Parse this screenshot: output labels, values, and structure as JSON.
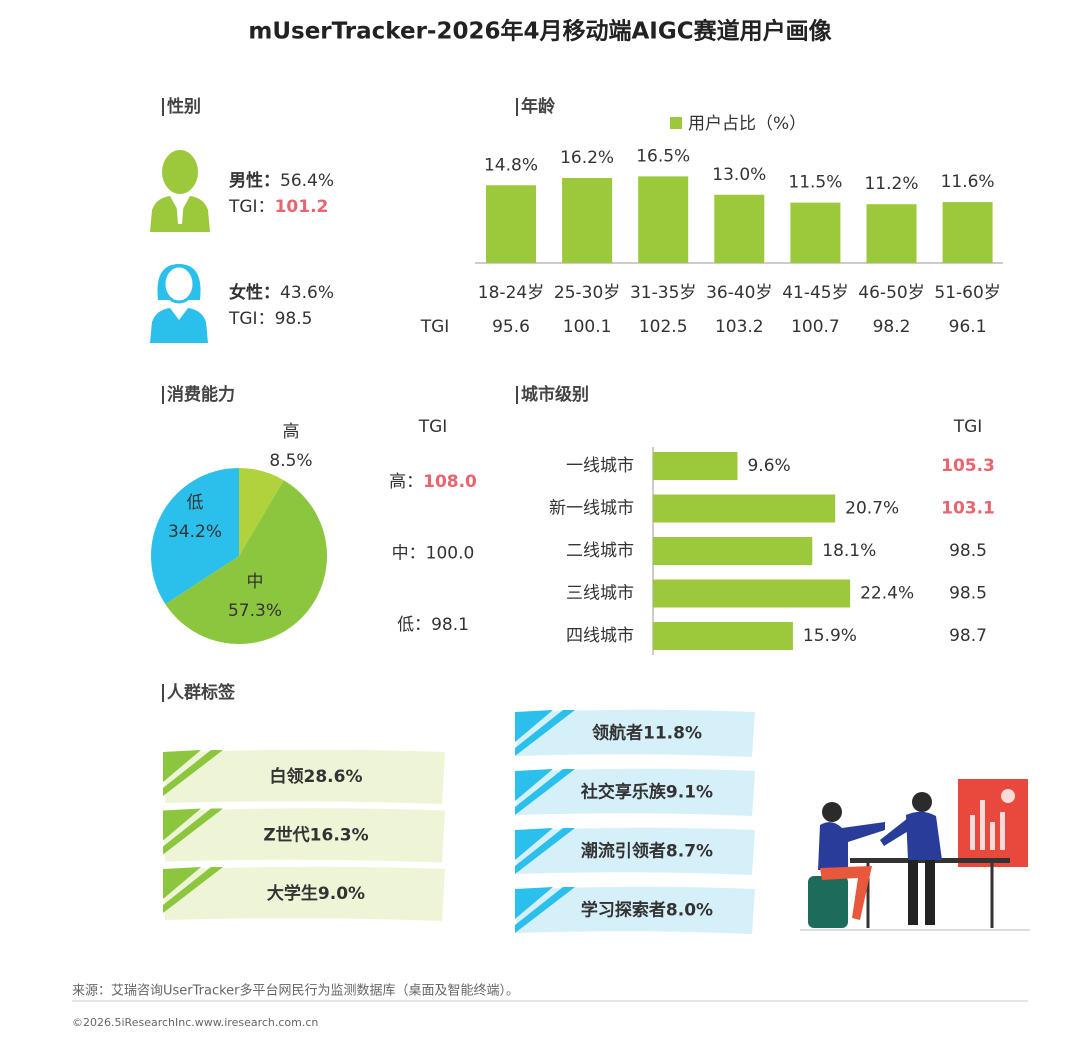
{
  "title": "mUserTracker-2026年4月移动端AIGC赛道用户画像",
  "gender": {
    "heading": "性别",
    "items": [
      {
        "label": "男性：",
        "share": "56.4%",
        "tgi_label": "TGI：",
        "tgi": "101.2",
        "highlight": true
      },
      {
        "label": "女性：",
        "share": "43.6%",
        "tgi_label": "TGI：",
        "tgi": "98.5",
        "highlight": false
      }
    ]
  },
  "chart_data": [
    {
      "type": "bar",
      "heading": "年龄",
      "legend": "用户占比（%）",
      "color": "#9cc93b",
      "categories": [
        "18-24岁",
        "25-30岁",
        "31-35岁",
        "36-40岁",
        "41-45岁",
        "46-50岁",
        "51-60岁"
      ],
      "values": [
        14.8,
        16.2,
        16.5,
        13.0,
        11.5,
        11.2,
        11.6
      ],
      "value_labels": [
        "14.8%",
        "16.2%",
        "16.5%",
        "13.0%",
        "11.5%",
        "11.2%",
        "11.6%"
      ],
      "tgi_label": "TGI",
      "tgi": [
        "95.6",
        "100.1",
        "102.5",
        "103.2",
        "100.7",
        "98.2",
        "96.1"
      ]
    },
    {
      "type": "pie",
      "heading": "消费能力",
      "categories": [
        "高",
        "中",
        "低"
      ],
      "values": [
        8.5,
        57.3,
        34.2
      ],
      "value_labels": [
        "8.5%",
        "57.3%",
        "34.2%"
      ],
      "colors": [
        "#b0d23c",
        "#8cc63f",
        "#2bc0ec"
      ],
      "tgi_title": "TGI",
      "tgi_labels": [
        "高：",
        "中：",
        "低："
      ],
      "tgi": [
        "108.0",
        "100.0",
        "98.1"
      ],
      "tgi_highlight": [
        true,
        false,
        false
      ]
    },
    {
      "type": "hbar",
      "heading": "城市级别",
      "color": "#9cc93b",
      "categories": [
        "一线城市",
        "新一线城市",
        "二线城市",
        "三线城市",
        "四线城市"
      ],
      "values": [
        9.6,
        20.7,
        18.1,
        22.4,
        15.9
      ],
      "value_labels": [
        "9.6%",
        "20.7%",
        "18.1%",
        "22.4%",
        "15.9%"
      ],
      "tgi_title": "TGI",
      "tgi": [
        "105.3",
        "103.1",
        "98.5",
        "98.5",
        "98.7"
      ],
      "tgi_highlight": [
        true,
        true,
        false,
        false,
        false
      ]
    }
  ],
  "tags": {
    "heading": "人群标签",
    "left": [
      "白领28.6%",
      "Z世代16.3%",
      "大学生9.0%"
    ],
    "right": [
      "领航者11.8%",
      "社交享乐族9.1%",
      "潮流引领者8.7%",
      "学习探索者8.0%"
    ]
  },
  "footer": {
    "source": "来源：艾瑞咨询UserTracker多平台网民行为监测数据库（桌面及智能终端）。",
    "copyright": "©2026.5iResearchInc.www.iresearch.com.cn"
  }
}
